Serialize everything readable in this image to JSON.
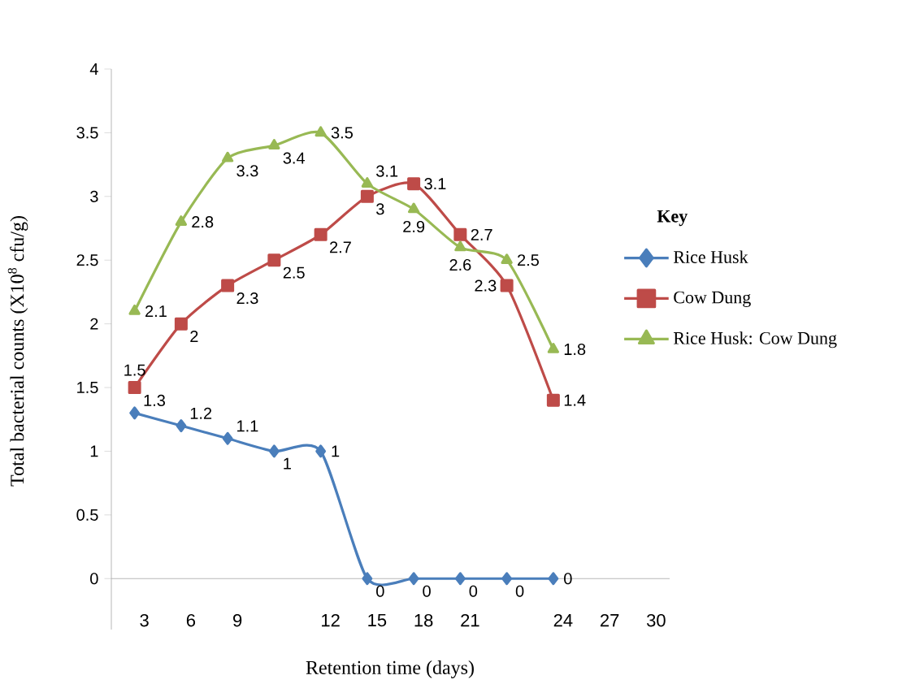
{
  "chart_data": {
    "type": "line",
    "xlabel": "Retention time (days)",
    "ylabel": "Total bacterial counts (X10$^{8}$ cfu/g)",
    "legend_title": "Key",
    "categories": [
      "3",
      "6",
      "9",
      null,
      "12",
      "15",
      "18",
      "21",
      null,
      "24",
      "27",
      "30"
    ],
    "series": [
      {
        "name": "Rice Husk",
        "color": "#4a7ebb",
        "marker": "diamond",
        "values": [
          1.3,
          1.2,
          1.1,
          1,
          1,
          0,
          0,
          0,
          0,
          0,
          null,
          null
        ]
      },
      {
        "name": "Cow Dung",
        "color": "#be4b48",
        "marker": "square",
        "values": [
          1.5,
          2,
          2.3,
          2.5,
          2.7,
          3,
          3.1,
          2.7,
          2.3,
          1.4,
          null,
          null
        ]
      },
      {
        "name": "Rice Husk: Cow Dung",
        "color": "#98b954",
        "marker": "triangle",
        "values": [
          2.1,
          2.8,
          3.3,
          3.4,
          3.5,
          3.1,
          2.9,
          2.6,
          2.5,
          1.8,
          null,
          null
        ]
      }
    ],
    "ylim": [
      -0.4,
      4
    ],
    "yticks": [
      0,
      0.5,
      1,
      1.5,
      2,
      2.5,
      3,
      3.5,
      4
    ],
    "data_labels": true,
    "legend": "right",
    "grid": false,
    "line_style": "solid"
  }
}
